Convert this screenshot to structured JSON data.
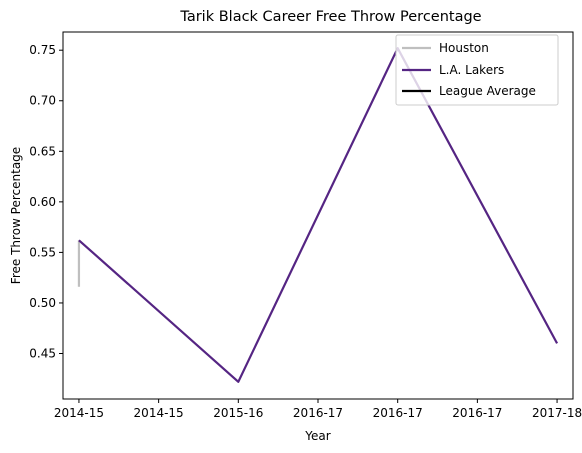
{
  "chart_data": {
    "type": "line",
    "title": "Tarik Black Career Free Throw Percentage",
    "xlabel": "Year",
    "ylabel": "Free Throw Percentage",
    "xlim": [
      -0.1,
      3.1
    ],
    "ylim": [
      0.405,
      0.768
    ],
    "x_ticks": [
      0,
      0.5,
      1,
      1.5,
      2,
      2.5,
      3
    ],
    "x_tick_labels": [
      "2014-15",
      "2014-15",
      "2015-16",
      "2016-17",
      "2016-17",
      "2016-17",
      "2017-18"
    ],
    "y_ticks": [
      0.45,
      0.5,
      0.55,
      0.6,
      0.65,
      0.7,
      0.75
    ],
    "y_tick_labels": [
      "0.45",
      "0.50",
      "0.55",
      "0.60",
      "0.65",
      "0.70",
      "0.75"
    ],
    "grid": false,
    "legend_position": "top-right",
    "series": [
      {
        "name": "Houston",
        "color": "#bfbfbf",
        "x": [
          0,
          0
        ],
        "y": [
          0.516,
          0.562
        ]
      },
      {
        "name": "L.A. Lakers",
        "color": "#552583",
        "x": [
          0,
          1,
          2,
          3
        ],
        "y": [
          0.562,
          0.422,
          0.752,
          0.46
        ]
      },
      {
        "name": "League Average",
        "color": "#000000",
        "x": [],
        "y": []
      }
    ]
  }
}
